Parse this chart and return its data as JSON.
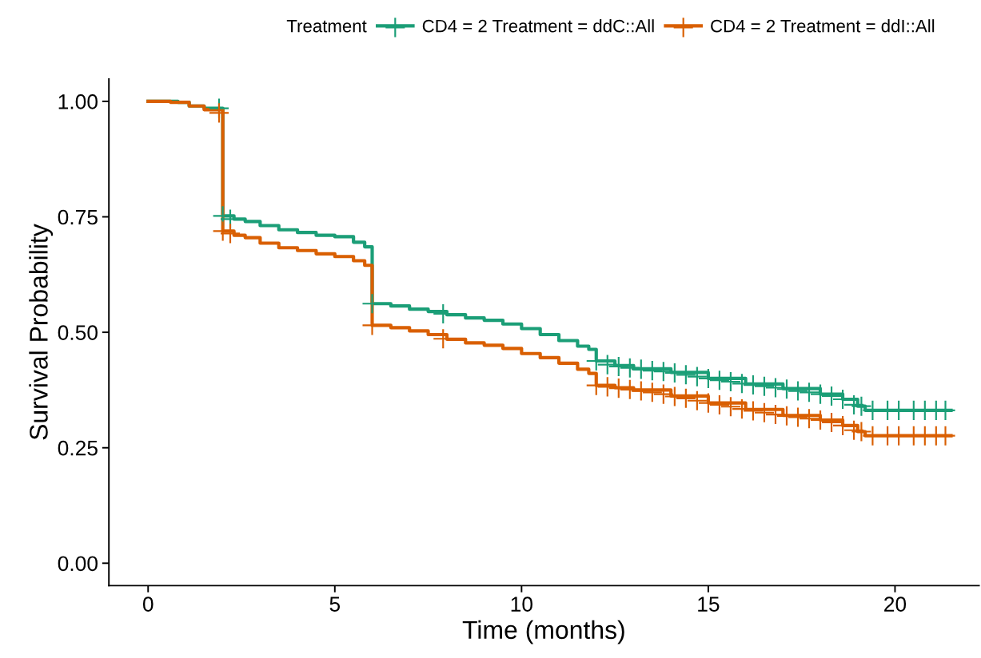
{
  "chart_data": {
    "type": "step",
    "xlabel": "Time (months)",
    "ylabel": "Survival Probability",
    "legend_title": "Treatment",
    "legend": "top",
    "grid": false,
    "xlim": [
      -1.05,
      22.25
    ],
    "ylim": [
      -0.0485,
      1.0485
    ],
    "xticks": [
      0,
      5,
      10,
      15,
      20
    ],
    "yticks": [
      {
        "value": 0,
        "label": "0.00"
      },
      {
        "value": 0.25,
        "label": "0.25"
      },
      {
        "value": 0.5,
        "label": "0.50"
      },
      {
        "value": 0.75,
        "label": "0.75"
      },
      {
        "value": 1,
        "label": "1.00"
      }
    ],
    "series": [
      {
        "name": "CD4 = 2 Treatment = ddC::All",
        "color": "#1b9e77",
        "marker": "none",
        "x": [
          0,
          0.8,
          1.1,
          1.5,
          2.0,
          2.3,
          2.6,
          3.0,
          3.5,
          4.0,
          4.5,
          5.0,
          5.5,
          5.8,
          6.0,
          6.5,
          7.0,
          7.5,
          8.0,
          8.5,
          9.0,
          9.5,
          10.0,
          10.5,
          11.0,
          11.5,
          11.8,
          12.0,
          12.5,
          13.0,
          14.0,
          15.0,
          16.0,
          17.0,
          18.0,
          18.6,
          19.0,
          19.2,
          21.5
        ],
        "values": [
          1.0,
          0.998,
          0.99,
          0.985,
          0.752,
          0.745,
          0.74,
          0.731,
          0.722,
          0.716,
          0.71,
          0.707,
          0.695,
          0.685,
          0.562,
          0.557,
          0.55,
          0.545,
          0.538,
          0.531,
          0.526,
          0.518,
          0.508,
          0.495,
          0.482,
          0.47,
          0.463,
          0.438,
          0.428,
          0.421,
          0.413,
          0.4,
          0.388,
          0.378,
          0.366,
          0.355,
          0.34,
          0.331,
          0.331
        ]
      },
      {
        "name": "CD4 = 2 Treatment = ddI::All",
        "color": "#d95f02",
        "marker": "none",
        "x": [
          0,
          0.6,
          1.1,
          1.5,
          2.0,
          2.3,
          2.6,
          3.0,
          3.5,
          4.0,
          4.5,
          5.0,
          5.5,
          5.8,
          6.0,
          6.5,
          7.0,
          7.5,
          8.0,
          8.5,
          9.0,
          9.5,
          10.0,
          10.5,
          11.0,
          11.5,
          11.8,
          12.0,
          12.5,
          13.0,
          14.0,
          15.0,
          16.0,
          17.0,
          18.0,
          18.6,
          19.0,
          19.2,
          21.5
        ],
        "values": [
          1.0,
          0.998,
          0.99,
          0.982,
          0.719,
          0.71,
          0.705,
          0.693,
          0.683,
          0.677,
          0.67,
          0.664,
          0.655,
          0.645,
          0.515,
          0.51,
          0.503,
          0.495,
          0.485,
          0.477,
          0.472,
          0.465,
          0.454,
          0.445,
          0.433,
          0.42,
          0.411,
          0.385,
          0.38,
          0.375,
          0.362,
          0.347,
          0.333,
          0.32,
          0.31,
          0.298,
          0.285,
          0.276,
          0.276
        ]
      },
      {
        "color": "#1b9e77",
        "type": "scatter",
        "marker": "cross",
        "x": [
          1.9,
          2.0,
          2.2,
          6.0,
          7.9,
          12.0,
          12.3,
          12.6,
          12.9,
          13.2,
          13.5,
          13.8,
          14.1,
          14.4,
          14.7,
          15.0,
          15.3,
          15.6,
          15.9,
          16.2,
          16.5,
          16.8,
          17.1,
          17.4,
          17.7,
          18.0,
          18.3,
          18.6,
          18.9,
          19.1,
          19.4,
          19.8,
          20.1,
          20.5,
          20.8,
          21.1,
          21.35
        ],
        "values": [
          0.985,
          0.752,
          0.745,
          0.562,
          0.54,
          0.438,
          0.43,
          0.426,
          0.423,
          0.42,
          0.417,
          0.415,
          0.412,
          0.408,
          0.404,
          0.4,
          0.396,
          0.393,
          0.389,
          0.386,
          0.383,
          0.38,
          0.377,
          0.373,
          0.37,
          0.366,
          0.362,
          0.355,
          0.343,
          0.34,
          0.331,
          0.331,
          0.331,
          0.331,
          0.331,
          0.331,
          0.331
        ]
      },
      {
        "color": "#d95f02",
        "type": "scatter",
        "marker": "cross",
        "x": [
          1.9,
          2.0,
          2.2,
          6.0,
          7.9,
          12.0,
          12.3,
          12.6,
          12.9,
          13.2,
          13.5,
          13.8,
          14.1,
          14.4,
          14.7,
          15.0,
          15.3,
          15.6,
          15.9,
          16.2,
          16.5,
          16.8,
          17.1,
          17.4,
          17.7,
          18.0,
          18.3,
          18.6,
          18.9,
          19.1,
          19.4,
          19.8,
          20.1,
          20.5,
          20.8,
          21.1,
          21.35
        ],
        "values": [
          0.975,
          0.719,
          0.714,
          0.515,
          0.486,
          0.385,
          0.382,
          0.379,
          0.376,
          0.373,
          0.37,
          0.366,
          0.361,
          0.357,
          0.352,
          0.347,
          0.343,
          0.339,
          0.334,
          0.33,
          0.326,
          0.322,
          0.319,
          0.316,
          0.313,
          0.31,
          0.305,
          0.298,
          0.288,
          0.285,
          0.276,
          0.276,
          0.276,
          0.276,
          0.276,
          0.276,
          0.276
        ]
      }
    ]
  }
}
